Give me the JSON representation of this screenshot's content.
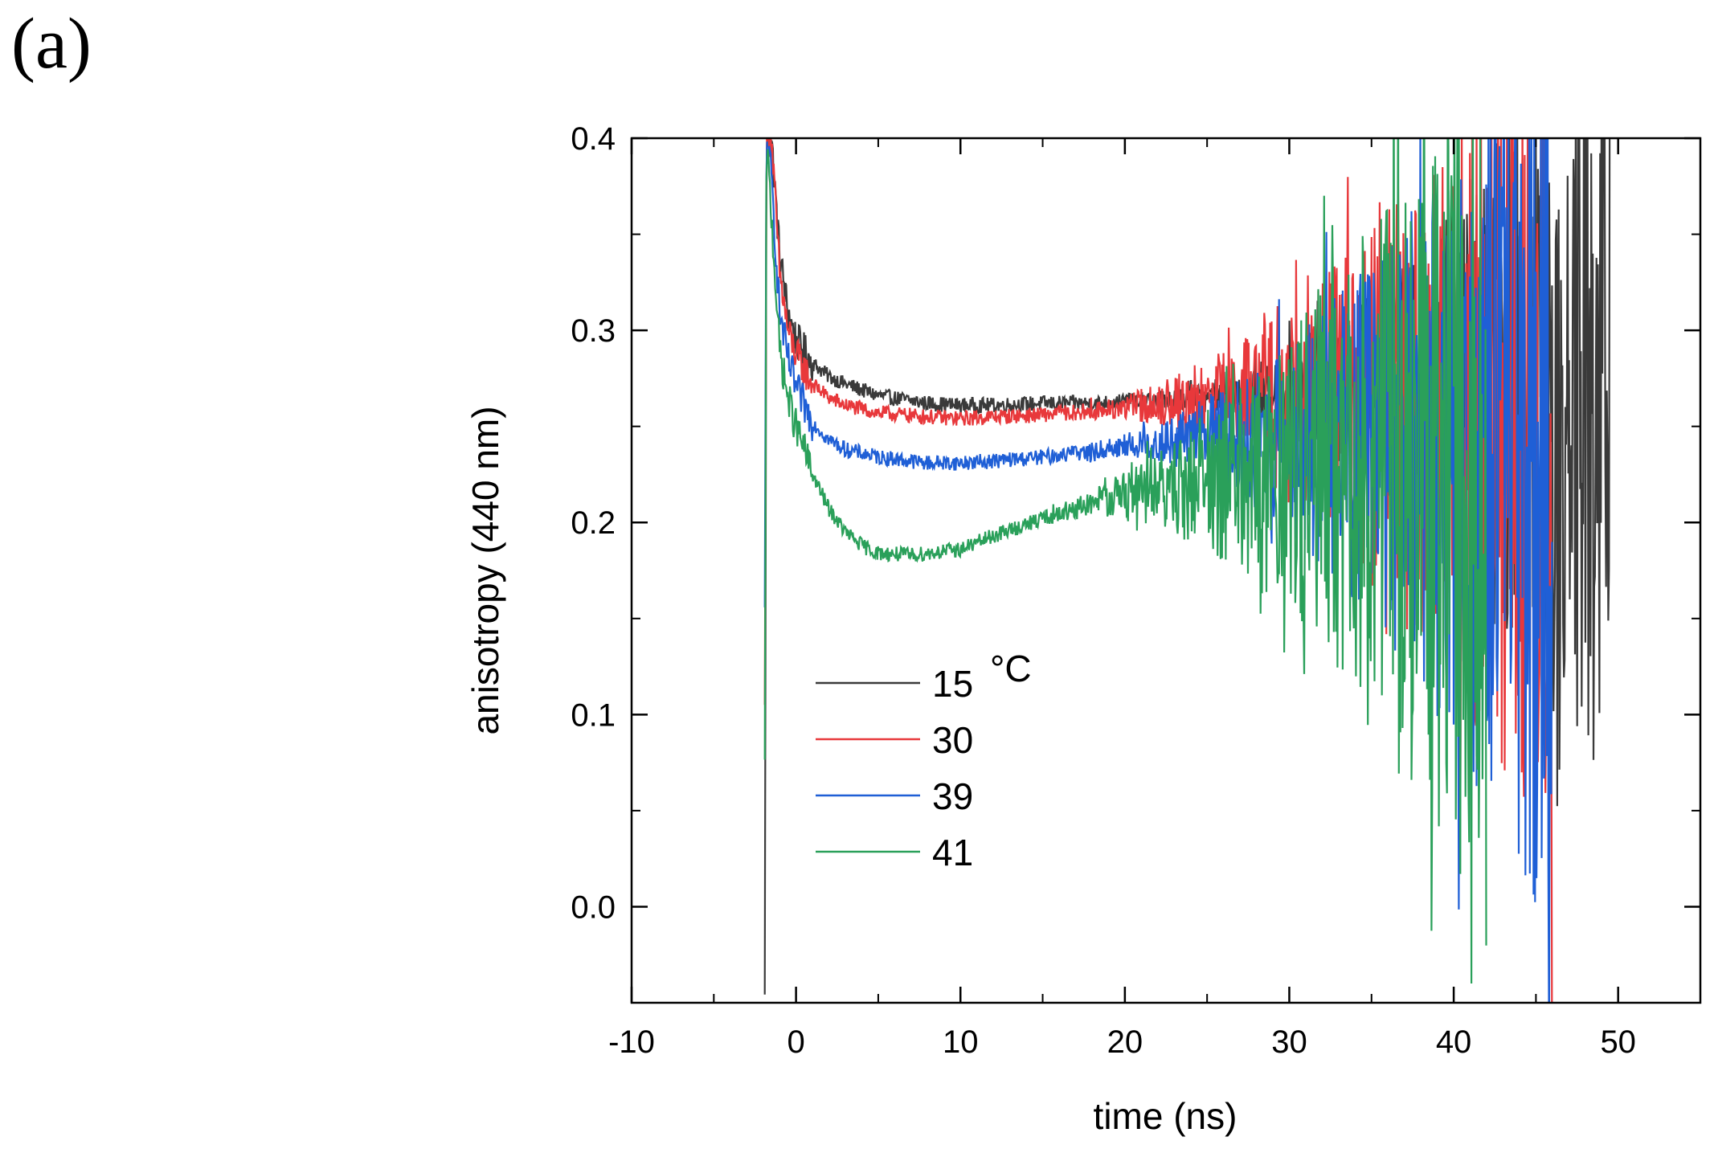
{
  "panel_label": "(a)",
  "chart_data": {
    "type": "line",
    "title": "",
    "xlabel": "time (ns)",
    "ylabel": "anisotropy (440 nm)",
    "xlim": [
      -10,
      55
    ],
    "ylim": [
      -0.05,
      0.4
    ],
    "x_ticks": [
      -10,
      0,
      10,
      20,
      30,
      40,
      50
    ],
    "x_tick_labels": [
      "-10",
      "0",
      "10",
      "20",
      "30",
      "40",
      "50"
    ],
    "y_ticks": [
      0.0,
      0.1,
      0.2,
      0.3,
      0.4
    ],
    "y_tick_labels": [
      "0.0",
      "0.1",
      "0.2",
      "0.3",
      "0.4"
    ],
    "legend_title_unit": "°C",
    "legend_placement": "lower-left",
    "series": [
      {
        "name": "15",
        "color": "#3a3a3a",
        "points": [
          [
            -1.9,
            -0.05
          ],
          [
            -1.8,
            0.4
          ],
          [
            -1.5,
            0.4
          ],
          [
            -1.0,
            0.34
          ],
          [
            -0.5,
            0.31
          ],
          [
            0,
            0.295
          ],
          [
            1,
            0.283
          ],
          [
            2,
            0.276
          ],
          [
            3,
            0.272
          ],
          [
            5,
            0.266
          ],
          [
            8,
            0.262
          ],
          [
            10,
            0.261
          ],
          [
            12,
            0.261
          ],
          [
            15,
            0.262
          ],
          [
            18,
            0.262
          ],
          [
            20,
            0.263
          ],
          [
            25,
            0.265
          ],
          [
            30,
            0.268
          ],
          [
            35,
            0.27
          ],
          [
            40,
            0.272
          ],
          [
            45,
            0.27
          ],
          [
            49.5,
            0.27
          ]
        ],
        "noise_start": 20,
        "noise_amp_end": 0.22
      },
      {
        "name": "30",
        "color": "#e8383b",
        "points": [
          [
            -1.9,
            0.1
          ],
          [
            -1.8,
            0.4
          ],
          [
            -1.5,
            0.4
          ],
          [
            -1.0,
            0.33
          ],
          [
            -0.5,
            0.3
          ],
          [
            0,
            0.287
          ],
          [
            1,
            0.272
          ],
          [
            2,
            0.265
          ],
          [
            3,
            0.261
          ],
          [
            5,
            0.257
          ],
          [
            8,
            0.255
          ],
          [
            10,
            0.254
          ],
          [
            12,
            0.255
          ],
          [
            15,
            0.256
          ],
          [
            18,
            0.258
          ],
          [
            20,
            0.26
          ],
          [
            25,
            0.265
          ],
          [
            30,
            0.265
          ],
          [
            35,
            0.262
          ],
          [
            40,
            0.255
          ],
          [
            46,
            0.25
          ]
        ],
        "noise_start": 16,
        "noise_amp_end": 0.24
      },
      {
        "name": "39",
        "color": "#1f5fd6",
        "points": [
          [
            -1.9,
            0.15
          ],
          [
            -1.8,
            0.4
          ],
          [
            -1.5,
            0.38
          ],
          [
            -1.0,
            0.31
          ],
          [
            -0.5,
            0.285
          ],
          [
            0,
            0.27
          ],
          [
            1,
            0.252
          ],
          [
            2,
            0.243
          ],
          [
            3,
            0.238
          ],
          [
            5,
            0.234
          ],
          [
            8,
            0.231
          ],
          [
            10,
            0.231
          ],
          [
            12,
            0.232
          ],
          [
            15,
            0.234
          ],
          [
            18,
            0.237
          ],
          [
            20,
            0.24
          ],
          [
            25,
            0.243
          ],
          [
            30,
            0.245
          ],
          [
            35,
            0.243
          ],
          [
            40,
            0.24
          ],
          [
            46,
            0.235
          ]
        ],
        "noise_start": 16,
        "noise_amp_end": 0.25
      },
      {
        "name": "41",
        "color": "#2aa05a",
        "points": [
          [
            -1.9,
            0.07
          ],
          [
            -1.8,
            0.4
          ],
          [
            -1.5,
            0.36
          ],
          [
            -1.0,
            0.29
          ],
          [
            -0.5,
            0.265
          ],
          [
            0,
            0.25
          ],
          [
            1,
            0.225
          ],
          [
            2,
            0.207
          ],
          [
            3,
            0.195
          ],
          [
            4,
            0.188
          ],
          [
            5,
            0.184
          ],
          [
            7,
            0.183
          ],
          [
            10,
            0.186
          ],
          [
            12,
            0.193
          ],
          [
            15,
            0.202
          ],
          [
            18,
            0.21
          ],
          [
            20,
            0.215
          ],
          [
            25,
            0.22
          ],
          [
            30,
            0.225
          ],
          [
            35,
            0.228
          ],
          [
            40,
            0.228
          ],
          [
            42,
            0.228
          ]
        ],
        "noise_start": 14,
        "noise_amp_end": 0.25
      }
    ]
  }
}
